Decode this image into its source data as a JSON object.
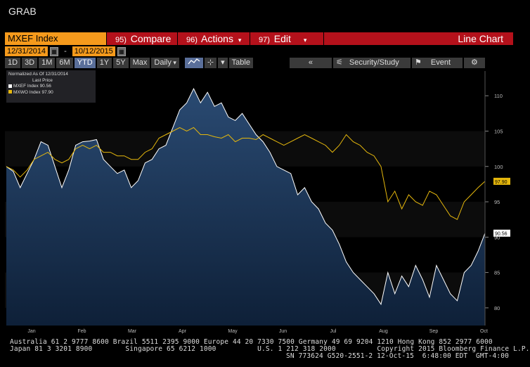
{
  "title": "GRAB",
  "ticker": "MXEF Index",
  "menu": {
    "compare": {
      "num": "95)",
      "label": "Compare"
    },
    "actions": {
      "num": "96)",
      "label": "Actions"
    },
    "edit": {
      "num": "97)",
      "label": "Edit"
    },
    "chart_type": "Line Chart"
  },
  "dates": {
    "start": "12/31/2014",
    "end": "10/12/2015",
    "sep": "-"
  },
  "periods": [
    "1D",
    "3D",
    "1M",
    "6M",
    "YTD",
    "1Y",
    "5Y",
    "Max"
  ],
  "active_period": "YTD",
  "frequency": "Daily",
  "toolbar": {
    "table": "Table",
    "back": "«",
    "security_study": "Security/Study",
    "event": "Event"
  },
  "legend": {
    "header": "Normalized As Of 12/31/2014",
    "last_price": "Last Price",
    "series": [
      {
        "label": "MXEF Index  90.56",
        "color": "#ffffff"
      },
      {
        "label": "MXWO Index  97.90",
        "color": "#e6b80c"
      }
    ]
  },
  "chart_data": {
    "type": "line",
    "y_ticks": [
      80,
      85,
      90,
      95,
      100,
      105,
      110
    ],
    "ylim": [
      77.5,
      113.5
    ],
    "x_labels": [
      "Jan",
      "Feb",
      "Mar",
      "Apr",
      "May",
      "Jun",
      "Jul",
      "Aug",
      "Sep",
      "Oct"
    ],
    "x_year": "2015",
    "series": [
      {
        "name": "MXEF Index",
        "color": "#ffffff",
        "last": "90.56",
        "values": [
          100,
          99.3,
          97,
          99,
          101,
          103.5,
          103,
          100,
          97,
          99.5,
          103,
          103.5,
          103.6,
          103.8,
          101,
          100,
          99,
          99.5,
          97,
          98,
          100.5,
          101,
          102.5,
          103,
          105.5,
          108,
          109,
          111,
          109,
          110.5,
          108.5,
          109,
          107,
          106.5,
          107.5,
          106,
          104.5,
          103.5,
          102,
          100,
          99.5,
          99,
          96,
          97,
          95,
          94,
          92,
          91,
          89,
          86.5,
          85,
          84,
          83,
          82,
          80.5,
          85,
          82,
          84.5,
          83,
          86,
          84,
          81.5,
          86,
          84,
          82,
          81,
          85,
          86,
          88,
          90.56
        ]
      },
      {
        "name": "MXWO Index",
        "color": "#e6b80c",
        "last": "97.90",
        "values": [
          100,
          99.5,
          98.5,
          99.5,
          101,
          101.5,
          102,
          101,
          100.5,
          101,
          102.5,
          103,
          102.5,
          103,
          102,
          102,
          101.5,
          101.5,
          101,
          101,
          102,
          102.5,
          104,
          104.5,
          105,
          105.5,
          105,
          105.5,
          104.5,
          104.5,
          104.2,
          104,
          104.5,
          103.5,
          104,
          104,
          103.8,
          104.5,
          104,
          103.5,
          103,
          103.5,
          104,
          104.5,
          104,
          103.5,
          103,
          102,
          103,
          104.5,
          103.5,
          103,
          102,
          101.5,
          100,
          95,
          96.5,
          94,
          96,
          95,
          94.5,
          96.5,
          96,
          94.5,
          93,
          92.5,
          95,
          96,
          97,
          97.9
        ]
      }
    ]
  },
  "footer": {
    "line1": "Australia 61 2 9777 8600 Brazil 5511 2395 9000 Europe 44 20 7330 7500 Germany 49 69 9204 1210 Hong Kong 852 2977 6000",
    "line2": "Japan 81 3 3201 8900        Singapore 65 6212 1000          U.S. 1 212 318 2000          Copyright 2015 Bloomberg Finance L.P.",
    "line3": "SN 773624 G520-2551-2 12-Oct-15  6:48:00 EDT  GMT-4:00"
  }
}
